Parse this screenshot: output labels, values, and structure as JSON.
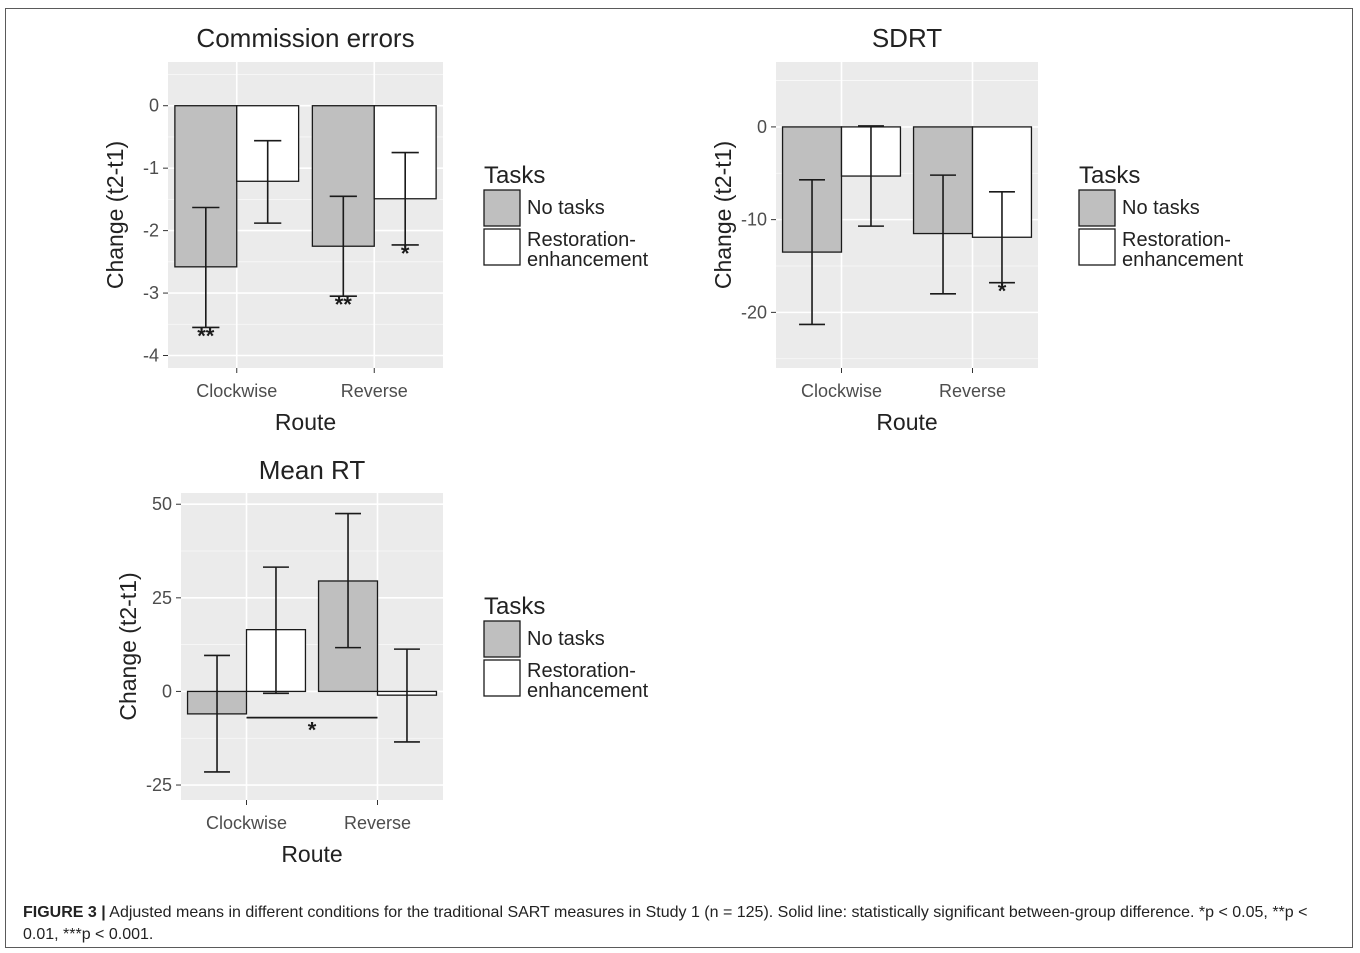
{
  "figure": {
    "colors": {
      "panel_bg": "#ebebeb",
      "grid": "#ffffff",
      "no_tasks_fill": "#bfbfbf",
      "restoration_fill": "#ffffff",
      "outline": "#1a1a1a",
      "text": "#222222",
      "tick_text": "#4d4d4d"
    },
    "caption": {
      "label": "FIGURE 3 |",
      "text": "Adjusted means in different conditions for the traditional SART measures in Study 1 (n = 125). Solid line: statistically significant between-group difference. *p < 0.05, **p < 0.01, ***p < 0.001."
    }
  },
  "chart_data": [
    {
      "type": "bar",
      "title": "Commission errors",
      "xlabel": "Route",
      "ylabel": "Change (t2-t1)",
      "categories": [
        "Clockwise",
        "Reverse"
      ],
      "ylim": [
        -4.2,
        0.7
      ],
      "yticks": [
        0,
        -1,
        -2,
        -3,
        -4
      ],
      "legend_title": "Tasks",
      "legend_position": "right",
      "grid": true,
      "series": [
        {
          "name": "No tasks",
          "values": [
            -2.58,
            -2.25
          ],
          "error_low": [
            -3.55,
            -3.05
          ],
          "error_high": [
            -1.63,
            -1.45
          ],
          "annotations": [
            "**",
            "**"
          ]
        },
        {
          "name": "Restoration-enhancement",
          "values": [
            -1.21,
            -1.49
          ],
          "error_low": [
            -1.88,
            -2.23
          ],
          "error_high": [
            -0.56,
            -0.75
          ],
          "annotations": [
            "",
            "*"
          ]
        }
      ]
    },
    {
      "type": "bar",
      "title": "SDRT",
      "xlabel": "Route",
      "ylabel": "Change (t2-t1)",
      "categories": [
        "Clockwise",
        "Reverse"
      ],
      "ylim": [
        -26,
        7
      ],
      "yticks": [
        0,
        -10,
        -20
      ],
      "legend_title": "Tasks",
      "legend_position": "right",
      "grid": true,
      "series": [
        {
          "name": "No tasks",
          "values": [
            -13.5,
            -11.5
          ],
          "error_low": [
            -21.3,
            -18
          ],
          "error_high": [
            -5.7,
            -5.2
          ],
          "annotations": [
            "",
            ""
          ]
        },
        {
          "name": "Restoration-enhancement",
          "values": [
            -5.3,
            -11.9
          ],
          "error_low": [
            -10.7,
            -16.8
          ],
          "error_high": [
            0.1,
            -7
          ],
          "annotations": [
            "",
            "*"
          ]
        }
      ]
    },
    {
      "type": "bar",
      "title": "Mean RT",
      "xlabel": "Route",
      "ylabel": "Change (t2-t1)",
      "categories": [
        "Clockwise",
        "Reverse"
      ],
      "ylim": [
        -29,
        53
      ],
      "yticks": [
        50,
        25,
        0,
        -25
      ],
      "legend_title": "Tasks",
      "legend_position": "right",
      "grid": true,
      "series": [
        {
          "name": "No tasks",
          "values": [
            -6,
            29.5
          ],
          "error_low": [
            -21.5,
            11.7
          ],
          "error_high": [
            9.6,
            47.5
          ],
          "annotations": [
            "",
            ""
          ]
        },
        {
          "name": "Restoration-enhancement",
          "values": [
            16.5,
            -1
          ],
          "error_low": [
            -0.5,
            -13.5
          ],
          "error_high": [
            33.2,
            11.3
          ],
          "annotations": [
            "",
            ""
          ]
        }
      ],
      "significance": {
        "from_category": "Clockwise",
        "to_category": "Reverse",
        "value": -7,
        "label": "*"
      }
    }
  ]
}
